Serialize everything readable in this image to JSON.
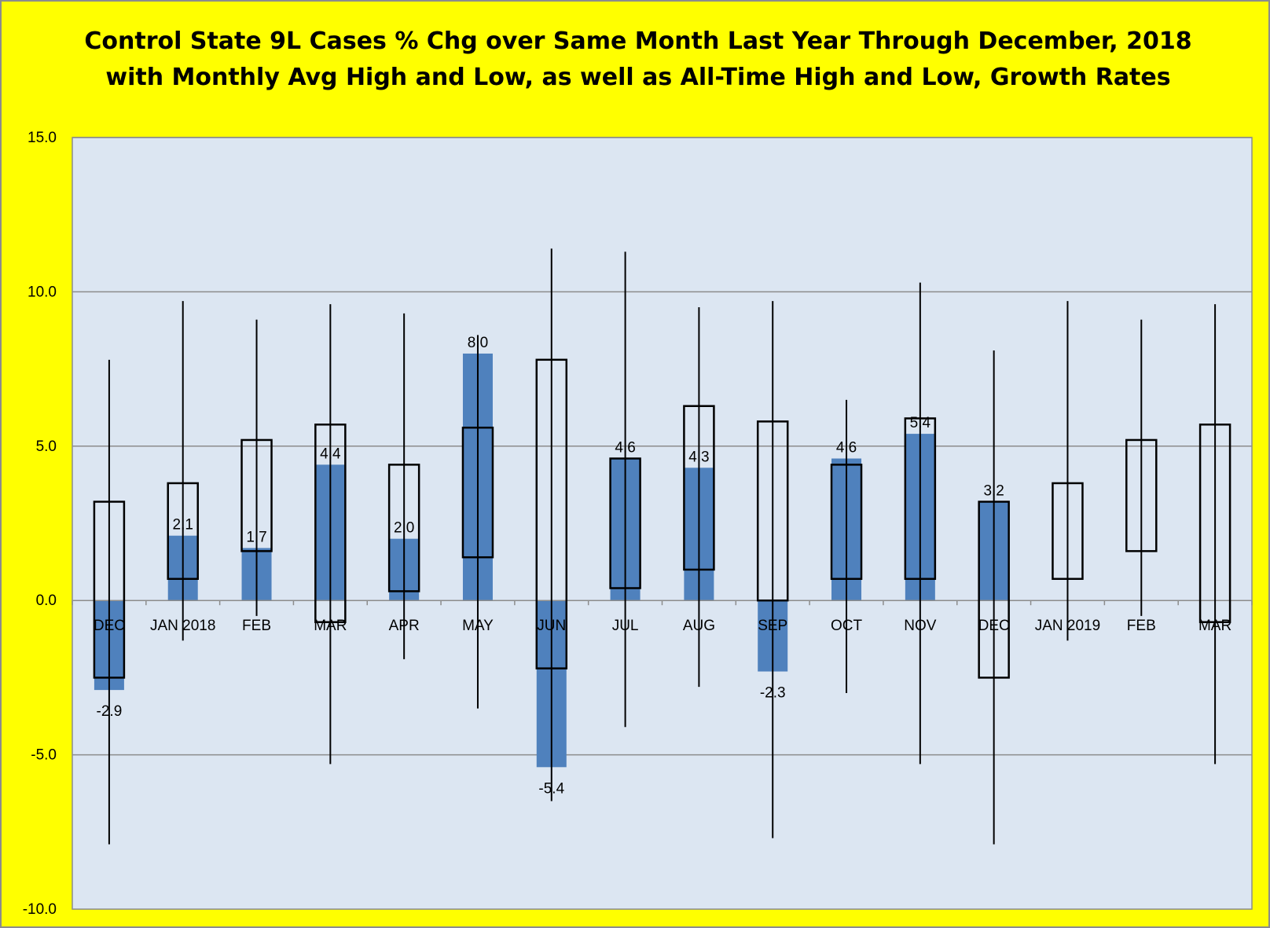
{
  "chart_data": {
    "type": "bar",
    "title": "Control State 9L Cases % Chg over Same Month Last Year Through December, 2018",
    "subtitle": "with Monthly Avg High and Low, as well as All-Time High and Low,  Growth Rates",
    "ylim": [
      -10,
      15
    ],
    "yticks": [
      "-10.0",
      "-5.0",
      "0.0",
      "5.0",
      "10.0",
      "15.0"
    ],
    "ytick_values": [
      -10,
      -5,
      0,
      5,
      10,
      15
    ],
    "grid": true,
    "categories": [
      "DEC",
      "JAN 2018",
      "FEB",
      "MAR",
      "APR",
      "MAY",
      "JUN",
      "JUL",
      "AUG",
      "SEP",
      "OCT",
      "NOV",
      "DEC",
      "JAN 2019",
      "FEB",
      "MAR"
    ],
    "series": [
      {
        "kind": "bar",
        "color": "#4f81bd",
        "values": [
          -2.9,
          2.1,
          1.7,
          4.4,
          2.0,
          8.0,
          -5.4,
          4.6,
          4.3,
          -2.3,
          4.6,
          5.4,
          3.2,
          null,
          null,
          null
        ],
        "labels": [
          "-2.9",
          "2.1",
          "1.7",
          "4.4",
          "2.0",
          "8.0",
          "-5.4",
          "4.6",
          "4.3",
          "-2.3",
          "4.6",
          "5.4",
          "3.2",
          "",
          "",
          ""
        ]
      },
      {
        "kind": "avg-range-box",
        "color": "#000000",
        "avg_high": [
          3.2,
          3.8,
          5.2,
          5.7,
          4.4,
          5.6,
          7.8,
          4.6,
          6.3,
          5.8,
          4.4,
          5.9,
          3.2,
          3.8,
          5.2,
          5.7
        ],
        "avg_low": [
          -2.5,
          0.7,
          1.6,
          -0.7,
          0.3,
          1.4,
          -2.2,
          0.4,
          1.0,
          0.0,
          0.7,
          0.7,
          -2.5,
          0.7,
          1.6,
          -0.7
        ]
      },
      {
        "kind": "all-time-range-line",
        "color": "#000000",
        "high": [
          7.8,
          9.7,
          9.1,
          9.6,
          9.3,
          8.6,
          11.4,
          11.3,
          9.5,
          9.7,
          6.5,
          10.3,
          8.1,
          9.7,
          9.1,
          9.6
        ],
        "low": [
          -7.9,
          -1.3,
          -0.5,
          -5.3,
          -1.9,
          -3.5,
          -6.5,
          -4.1,
          -2.8,
          -7.7,
          -3.0,
          -5.3,
          -7.9,
          -1.3,
          -0.5,
          -5.3
        ]
      }
    ]
  }
}
